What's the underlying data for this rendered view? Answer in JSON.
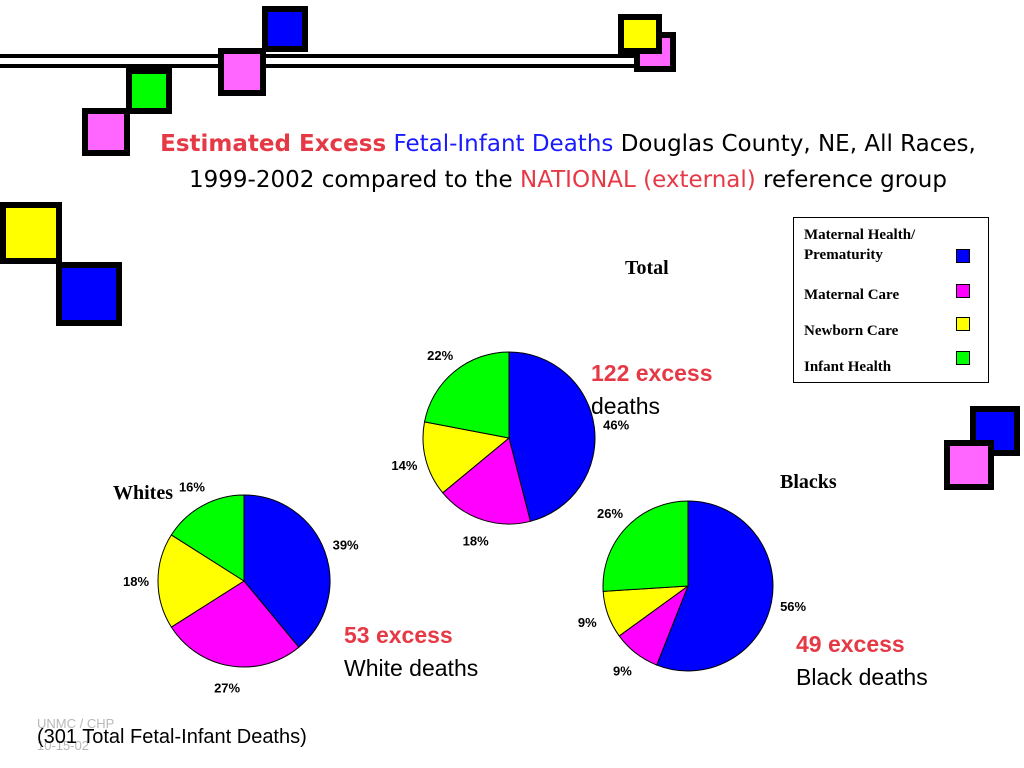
{
  "title": {
    "part1": "Estimated Excess",
    "part2": "Fetal-Infant Deaths",
    "part3": "Douglas County, NE, All Races, 1999-2002 compared to the",
    "part4": "NATIONAL (external)",
    "part5": "reference group"
  },
  "legend": [
    {
      "label": "Maternal Health/ Prematurity",
      "color": "#0000ff"
    },
    {
      "label": "Maternal Care",
      "color": "#ff00ff"
    },
    {
      "label": "Newborn Care",
      "color": "#ffff00"
    },
    {
      "label": "Infant Health",
      "color": "#00ff00"
    }
  ],
  "notes": {
    "total_hl": "122 excess",
    "total_rest": "deaths",
    "whites_hl": "53 excess",
    "whites_rest": "White deaths",
    "blacks_hl": "49 excess",
    "blacks_rest": "Black deaths"
  },
  "footer": "(301 Total Fetal-Infant Deaths)",
  "watermark": {
    "line1": "UNMC / CHP",
    "line2": "10-15-02"
  },
  "decor_colors": {
    "blue": "#0000ff",
    "magenta": "#ff66ff",
    "green": "#00ff00",
    "yellow": "#ffff00"
  },
  "chart_data": [
    {
      "type": "pie",
      "title": "Total",
      "categories": [
        "Maternal Health/ Prematurity",
        "Maternal Care",
        "Newborn Care",
        "Infant Health"
      ],
      "values": [
        46,
        18,
        14,
        22
      ],
      "labels": [
        "46%",
        "18%",
        "14%",
        "22%"
      ],
      "colors": [
        "#0000ff",
        "#ff00ff",
        "#ffff00",
        "#00ff00"
      ]
    },
    {
      "type": "pie",
      "title": "Whites",
      "categories": [
        "Maternal Health/ Prematurity",
        "Maternal Care",
        "Newborn Care",
        "Infant Health"
      ],
      "values": [
        39,
        27,
        18,
        16
      ],
      "labels": [
        "39%",
        "27%",
        "18%",
        "16%"
      ],
      "colors": [
        "#0000ff",
        "#ff00ff",
        "#ffff00",
        "#00ff00"
      ]
    },
    {
      "type": "pie",
      "title": "Blacks",
      "categories": [
        "Maternal Health/ Prematurity",
        "Maternal Care",
        "Newborn Care",
        "Infant Health"
      ],
      "values": [
        56,
        9,
        9,
        26
      ],
      "labels": [
        "56%",
        "9%",
        "9%",
        "26%"
      ],
      "colors": [
        "#0000ff",
        "#ff00ff",
        "#ffff00",
        "#00ff00"
      ]
    }
  ]
}
